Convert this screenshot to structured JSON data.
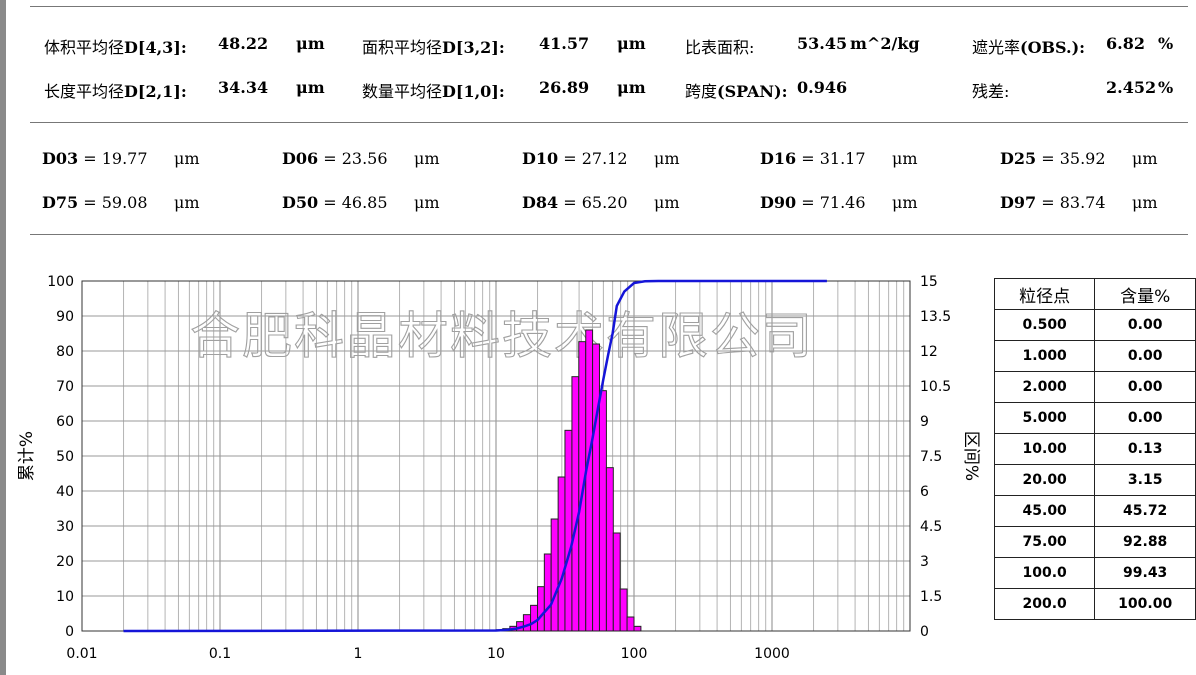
{
  "summary": {
    "row1": [
      {
        "label": "体积平均径",
        "key": "D[4,3]",
        "sep": ":",
        "value": "48.22",
        "unit": "μm"
      },
      {
        "label": "面积平均径",
        "key": "D[3,2]",
        "sep": ":",
        "value": "41.57",
        "unit": "μm"
      },
      {
        "label": "比表面积:",
        "key": "",
        "sep": "",
        "value": "53.45",
        "unit": "m^2/kg"
      },
      {
        "label": "遮光率",
        "key": "(OBS.)",
        "sep": ":",
        "value": "6.82",
        "unit": "%"
      }
    ],
    "row2": [
      {
        "label": "长度平均径",
        "key": "D[2,1]",
        "sep": ":",
        "value": "34.34",
        "unit": "μm"
      },
      {
        "label": "数量平均径",
        "key": "D[1,0]",
        "sep": ":",
        "value": "26.89",
        "unit": "μm"
      },
      {
        "label": "跨度",
        "key": "(SPAN)",
        "sep": ":",
        "value": "0.946",
        "unit": ""
      },
      {
        "label": "残差:",
        "key": "",
        "sep": "",
        "value": "2.452",
        "unit": "%"
      }
    ]
  },
  "dvalues": {
    "row1": [
      {
        "name": "D03",
        "value": "19.77",
        "unit": "μm"
      },
      {
        "name": "D06",
        "value": "23.56",
        "unit": "μm"
      },
      {
        "name": "D10",
        "value": "27.12",
        "unit": "μm"
      },
      {
        "name": "D16",
        "value": "31.17",
        "unit": "μm"
      },
      {
        "name": "D25",
        "value": "35.92",
        "unit": "μm"
      }
    ],
    "row2": [
      {
        "name": "D75",
        "value": "59.08",
        "unit": "μm"
      },
      {
        "name": "D50",
        "value": "46.85",
        "unit": "μm"
      },
      {
        "name": "D84",
        "value": "65.20",
        "unit": "μm"
      },
      {
        "name": "D90",
        "value": "71.46",
        "unit": "μm"
      },
      {
        "name": "D97",
        "value": "83.74",
        "unit": "μm"
      }
    ]
  },
  "table": {
    "headers": [
      "粒径点",
      "含量%"
    ],
    "rows": [
      [
        "0.500",
        "0.00"
      ],
      [
        "1.000",
        "0.00"
      ],
      [
        "2.000",
        "0.00"
      ],
      [
        "5.000",
        "0.00"
      ],
      [
        "10.00",
        "0.13"
      ],
      [
        "20.00",
        "3.15"
      ],
      [
        "45.00",
        "45.72"
      ],
      [
        "75.00",
        "92.88"
      ],
      [
        "100.0",
        "99.43"
      ],
      [
        "200.0",
        "100.00"
      ]
    ]
  },
  "chart_data": {
    "type": "bar",
    "title": "",
    "watermark": "合肥科晶材料技术有限公司",
    "xscale": "log",
    "xlim": [
      0.01,
      10000
    ],
    "x_ticks": [
      0.01,
      0.1,
      1,
      10,
      100,
      1000
    ],
    "x_tick_labels": [
      "0.01",
      "0.1",
      "1",
      "10",
      "100",
      "1000"
    ],
    "ylabel_left": "累计%",
    "ylim_left": [
      0,
      100
    ],
    "y_ticks_left": [
      0,
      10,
      20,
      30,
      40,
      50,
      60,
      70,
      80,
      90,
      100
    ],
    "ylabel_right": "区间%",
    "ylim_right": [
      0,
      15
    ],
    "y_ticks_right": [
      "0",
      "1.5",
      "3",
      "4.5",
      "6",
      "7.5",
      "9",
      "10.5",
      "12",
      "13.5",
      "15"
    ],
    "grid": true,
    "bar_color": "#ff00ff",
    "line_color": "#1515d8",
    "series": [
      {
        "type": "bar",
        "axis": "right",
        "bins": [
          {
            "x0": 10.0,
            "x1": 11.2,
            "value": 0.05
          },
          {
            "x0": 11.2,
            "x1": 12.6,
            "value": 0.1
          },
          {
            "x0": 12.6,
            "x1": 14.1,
            "value": 0.2
          },
          {
            "x0": 14.1,
            "x1": 15.8,
            "value": 0.4
          },
          {
            "x0": 15.8,
            "x1": 17.8,
            "value": 0.7
          },
          {
            "x0": 17.8,
            "x1": 20.0,
            "value": 1.1
          },
          {
            "x0": 20.0,
            "x1": 22.4,
            "value": 1.9
          },
          {
            "x0": 22.4,
            "x1": 25.1,
            "value": 3.3
          },
          {
            "x0": 25.1,
            "x1": 28.2,
            "value": 4.8
          },
          {
            "x0": 28.2,
            "x1": 31.6,
            "value": 6.6
          },
          {
            "x0": 31.6,
            "x1": 35.5,
            "value": 8.6
          },
          {
            "x0": 35.5,
            "x1": 39.8,
            "value": 10.9
          },
          {
            "x0": 39.8,
            "x1": 44.7,
            "value": 12.4
          },
          {
            "x0": 44.7,
            "x1": 50.1,
            "value": 12.9
          },
          {
            "x0": 50.1,
            "x1": 56.2,
            "value": 12.3
          },
          {
            "x0": 56.2,
            "x1": 63.1,
            "value": 10.3
          },
          {
            "x0": 63.1,
            "x1": 70.8,
            "value": 7.0
          },
          {
            "x0": 70.8,
            "x1": 79.4,
            "value": 4.2
          },
          {
            "x0": 79.4,
            "x1": 89.1,
            "value": 1.8
          },
          {
            "x0": 89.1,
            "x1": 100.0,
            "value": 0.6
          },
          {
            "x0": 100.0,
            "x1": 112.2,
            "value": 0.2
          }
        ]
      },
      {
        "type": "line",
        "axis": "left",
        "points": [
          [
            0.02,
            0
          ],
          [
            10,
            0.13
          ],
          [
            12,
            0.3
          ],
          [
            14,
            0.7
          ],
          [
            16,
            1.3
          ],
          [
            18,
            2.0
          ],
          [
            20,
            3.15
          ],
          [
            25,
            7.5
          ],
          [
            30,
            15
          ],
          [
            35,
            24
          ],
          [
            40,
            34
          ],
          [
            45,
            45.72
          ],
          [
            50,
            55
          ],
          [
            55,
            64
          ],
          [
            60,
            72
          ],
          [
            65,
            79
          ],
          [
            70,
            85
          ],
          [
            75,
            92.88
          ],
          [
            85,
            97
          ],
          [
            100,
            99.43
          ],
          [
            120,
            99.9
          ],
          [
            150,
            100
          ],
          [
            200,
            100
          ],
          [
            2500,
            100
          ]
        ]
      }
    ]
  }
}
